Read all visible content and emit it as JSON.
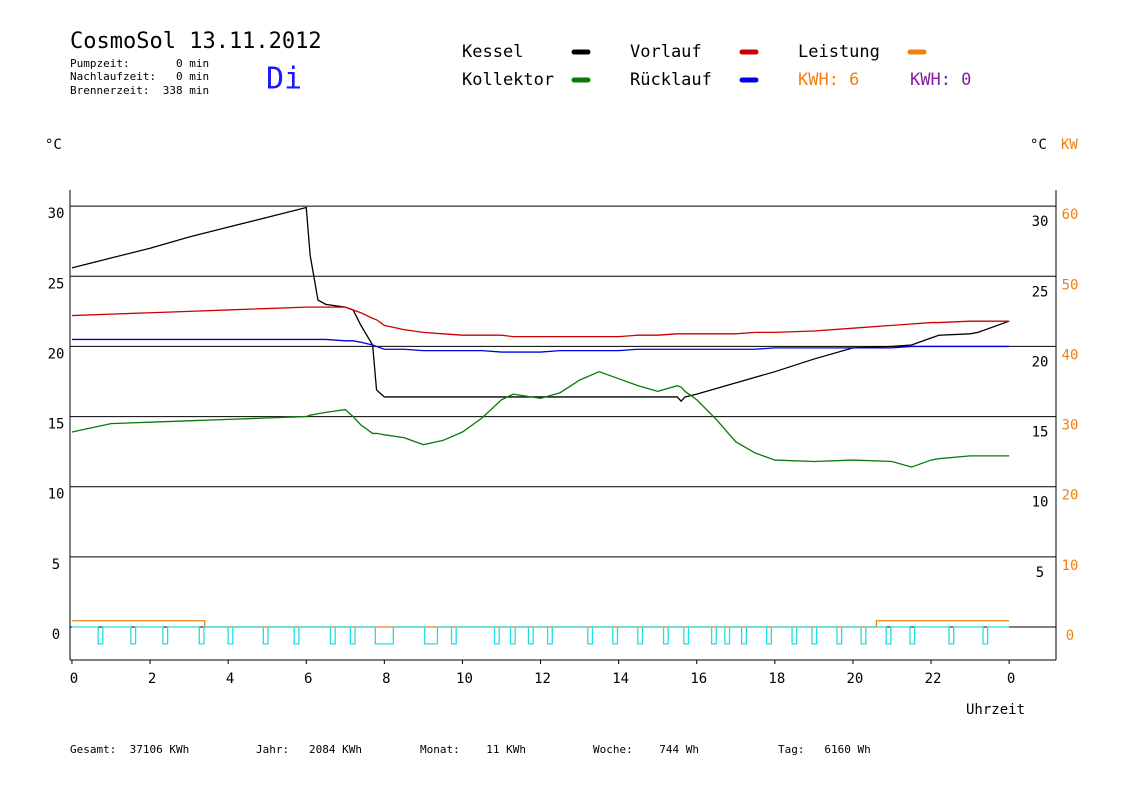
{
  "chart_data": {
    "type": "line",
    "title": "CosmoSol 13.11.2012",
    "info": [
      "Pumpzeit:       0 min",
      "Nachlaufzeit:   0 min",
      "Brennerzeit:  338 min"
    ],
    "day": "Di",
    "y_label": "°C",
    "y_label_right": "°C",
    "y2_label": "KW",
    "x_label": "Uhrzeit",
    "annotations": [
      {
        "text": "KWH: 6",
        "color": "#f08010"
      },
      {
        "text": "KWH: 0",
        "color": "#8020a0"
      }
    ],
    "footer": [
      "Gesamt:  37106 KWh",
      "Jahr:   2084 KWh",
      "Monat:    11 KWh",
      "Woche:    744 Wh",
      "Tag:   6160 Wh"
    ],
    "x": [
      0,
      1,
      2,
      3,
      4,
      5,
      6,
      6.1,
      6.3,
      6.5,
      7,
      7.2,
      7.4,
      7.7,
      7.8,
      8,
      8.5,
      9,
      9.5,
      10,
      10.5,
      11,
      11.3,
      12,
      12.5,
      13,
      13.5,
      14,
      14.5,
      15,
      15.5,
      15.6,
      15.7,
      16,
      16.5,
      17,
      17.5,
      18,
      19,
      20,
      21,
      21.5,
      22,
      22.2,
      23,
      23.2,
      24
    ],
    "series": [
      {
        "name": "Kessel",
        "color": "#000000",
        "values": [
          25.6,
          26.3,
          27.0,
          27.8,
          28.5,
          29.2,
          29.9,
          26.5,
          23.3,
          23.0,
          22.8,
          22.6,
          21.5,
          20.1,
          16.9,
          16.4,
          16.4,
          16.4,
          16.4,
          16.4,
          16.4,
          16.4,
          16.4,
          16.4,
          16.4,
          16.4,
          16.4,
          16.4,
          16.4,
          16.4,
          16.4,
          16.1,
          16.4,
          16.6,
          17.0,
          17.4,
          17.8,
          18.2,
          19.1,
          19.9,
          20.0,
          20.1,
          20.6,
          20.8,
          20.9,
          21.0,
          21.8
        ]
      },
      {
        "name": "Kollektor",
        "color": "#0a7a0a",
        "values": [
          13.9,
          14.5,
          14.6,
          14.7,
          14.8,
          14.9,
          15.0,
          15.1,
          15.2,
          15.3,
          15.5,
          15.0,
          14.4,
          13.8,
          13.8,
          13.7,
          13.5,
          13.0,
          13.3,
          13.9,
          14.9,
          16.2,
          16.6,
          16.3,
          16.7,
          17.6,
          18.2,
          17.7,
          17.2,
          16.8,
          17.2,
          17.1,
          16.8,
          16.2,
          14.8,
          13.2,
          12.4,
          11.9,
          11.8,
          11.9,
          11.8,
          11.4,
          11.9,
          12.0,
          12.2,
          12.2,
          12.2
        ]
      },
      {
        "name": "Vorlauf",
        "color": "#cc0000",
        "values": [
          22.2,
          22.3,
          22.4,
          22.5,
          22.6,
          22.7,
          22.8,
          22.8,
          22.8,
          22.8,
          22.8,
          22.6,
          22.4,
          22.0,
          21.9,
          21.5,
          21.2,
          21.0,
          20.9,
          20.8,
          20.8,
          20.8,
          20.7,
          20.7,
          20.7,
          20.7,
          20.7,
          20.7,
          20.8,
          20.8,
          20.9,
          20.9,
          20.9,
          20.9,
          20.9,
          20.9,
          21.0,
          21.0,
          21.1,
          21.3,
          21.5,
          21.6,
          21.7,
          21.7,
          21.8,
          21.8,
          21.8
        ]
      },
      {
        "name": "Rücklauf",
        "color": "#0000e0",
        "values": [
          20.5,
          20.5,
          20.5,
          20.5,
          20.5,
          20.5,
          20.5,
          20.5,
          20.5,
          20.5,
          20.4,
          20.4,
          20.3,
          20.1,
          20.0,
          19.8,
          19.8,
          19.7,
          19.7,
          19.7,
          19.7,
          19.6,
          19.6,
          19.6,
          19.7,
          19.7,
          19.7,
          19.7,
          19.8,
          19.8,
          19.8,
          19.8,
          19.8,
          19.8,
          19.8,
          19.8,
          19.8,
          19.9,
          19.9,
          19.9,
          19.9,
          20.0,
          20.0,
          20.0,
          20.0,
          20.0,
          20.0
        ]
      },
      {
        "name": "Leistung",
        "color": "#f08010",
        "axis": "y2",
        "x": [
          0,
          3.4,
          3.4,
          20.6,
          20.6,
          24
        ],
        "values": [
          0.9,
          0.9,
          0,
          0,
          0.9,
          0.9
        ]
      },
      {
        "color": "#20e0e0",
        "x": [
          0,
          0.67,
          0.67,
          0.79,
          0.79,
          1.51,
          1.51,
          1.63,
          1.63,
          2.33,
          2.33,
          2.45,
          2.45,
          3.26,
          3.26,
          3.38,
          3.38,
          4.0,
          4.0,
          4.12,
          4.12,
          4.9,
          4.9,
          5.02,
          5.02,
          5.69,
          5.69,
          5.81,
          5.81,
          6.62,
          6.62,
          6.74,
          6.74,
          7.13,
          7.13,
          7.25,
          7.25,
          7.77,
          7.77,
          8.23,
          8.23,
          9.03,
          9.03,
          9.36,
          9.36,
          9.72,
          9.72,
          9.84,
          9.84,
          10.82,
          10.82,
          10.94,
          10.94,
          11.23,
          11.23,
          11.35,
          11.35,
          11.69,
          11.69,
          11.81,
          11.81,
          12.18,
          12.18,
          12.3,
          12.3,
          13.21,
          13.21,
          13.33,
          13.33,
          13.85,
          13.85,
          13.97,
          13.97,
          14.49,
          14.49,
          14.61,
          14.61,
          15.15,
          15.15,
          15.27,
          15.27,
          15.67,
          15.67,
          15.79,
          15.79,
          16.38,
          16.38,
          16.5,
          16.5,
          16.72,
          16.72,
          16.84,
          16.84,
          17.15,
          17.15,
          17.27,
          17.27,
          17.79,
          17.79,
          17.91,
          17.91,
          18.44,
          18.44,
          18.56,
          18.56,
          18.95,
          18.95,
          19.07,
          19.07,
          19.59,
          19.59,
          19.71,
          19.71,
          20.21,
          20.21,
          20.33,
          20.33,
          20.85,
          20.85,
          20.97,
          20.97,
          21.46,
          21.46,
          21.58,
          21.58,
          22.46,
          22.46,
          22.58,
          22.58,
          23.33,
          23.33,
          23.45,
          23.45,
          24
        ],
        "values": [
          0,
          0,
          -1.2,
          -1.2,
          0,
          0,
          -1.2,
          -1.2,
          0,
          0,
          -1.2,
          -1.2,
          0,
          0,
          -1.2,
          -1.2,
          0,
          0,
          -1.2,
          -1.2,
          0,
          0,
          -1.2,
          -1.2,
          0,
          0,
          -1.2,
          -1.2,
          0,
          0,
          -1.2,
          -1.2,
          0,
          0,
          -1.2,
          -1.2,
          0,
          0,
          -1.2,
          -1.2,
          0,
          0,
          -1.2,
          -1.2,
          0,
          0,
          -1.2,
          -1.2,
          0,
          0,
          -1.2,
          -1.2,
          0,
          0,
          -1.2,
          -1.2,
          0,
          0,
          -1.2,
          -1.2,
          0,
          0,
          -1.2,
          -1.2,
          0,
          0,
          -1.2,
          -1.2,
          0,
          0,
          -1.2,
          -1.2,
          0,
          0,
          -1.2,
          -1.2,
          0,
          0,
          -1.2,
          -1.2,
          0,
          0,
          -1.2,
          -1.2,
          0,
          0,
          -1.2,
          -1.2,
          0,
          0,
          -1.2,
          -1.2,
          0,
          0,
          -1.2,
          -1.2,
          0,
          0,
          -1.2,
          -1.2,
          0,
          0,
          -1.2,
          -1.2,
          0,
          0,
          -1.2,
          -1.2,
          0,
          0,
          -1.2,
          -1.2,
          0,
          0,
          -1.2,
          -1.2,
          0,
          0,
          -1.2,
          -1.2,
          0,
          0,
          -1.2,
          -1.2,
          0,
          0,
          -1.2,
          -1.2,
          0,
          0,
          -1.2,
          -1.2,
          0,
          0
        ]
      }
    ],
    "xlim": [
      -0.05,
      25.2
    ],
    "xticks": [
      0,
      2,
      4,
      6,
      8,
      10,
      12,
      14,
      16,
      18,
      20,
      22,
      {
        "value": 24,
        "label": "0"
      }
    ],
    "ylim": [
      -2.35,
      31.15
    ],
    "yticks": [
      0,
      5,
      10,
      15,
      20,
      25,
      30
    ],
    "yticks_right": [
      5,
      10,
      15,
      20,
      25,
      30
    ],
    "y2lim": [
      -4.7,
      62.3
    ],
    "y2ticks": [
      0,
      10,
      20,
      30,
      40,
      50,
      60
    ],
    "grid": true
  }
}
